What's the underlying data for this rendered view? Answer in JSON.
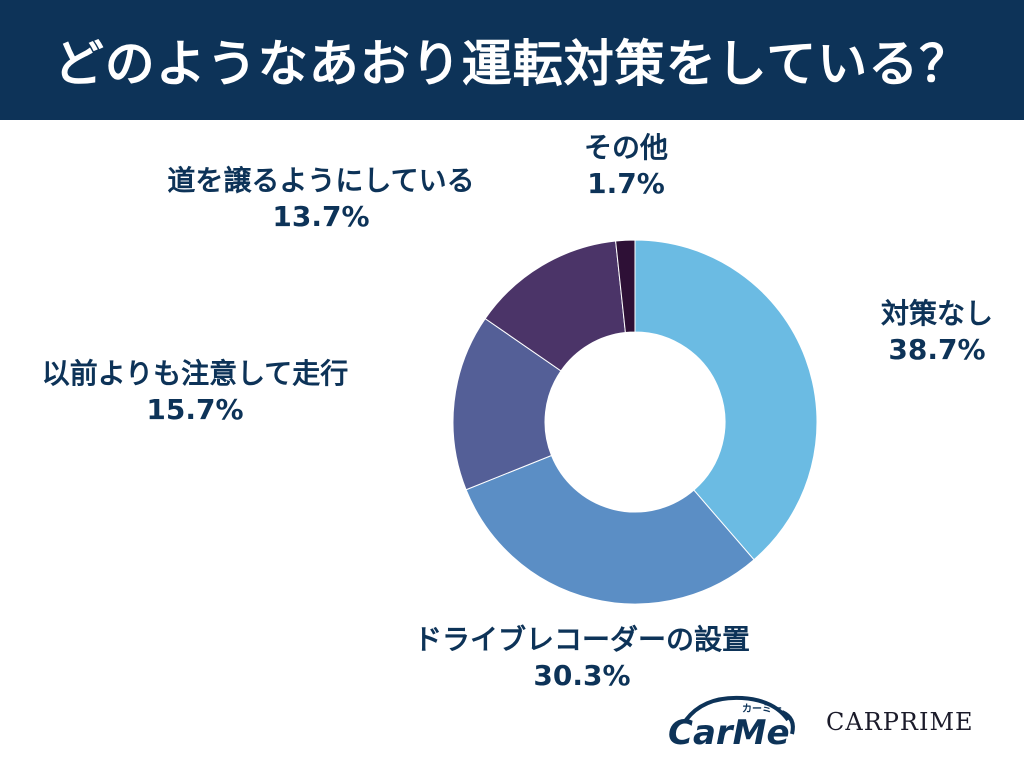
{
  "header": {
    "title": "どのようなあおり運転対策をしている？"
  },
  "chart_data": {
    "type": "pie",
    "donut": true,
    "title": "どのようなあおり運転対策をしている？",
    "slices": [
      {
        "label": "対策なし",
        "value": 38.7,
        "value_label": "38.7%",
        "color": "#6bbbe3"
      },
      {
        "label": "ドライブレコーダーの設置",
        "value": 30.3,
        "value_label": "30.3%",
        "color": "#5b8ec5"
      },
      {
        "label": "以前よりも注意して走行",
        "value": 15.7,
        "value_label": "15.7%",
        "color": "#545f97"
      },
      {
        "label": "道を譲るようにしている",
        "value": 13.7,
        "value_label": "13.7%",
        "color": "#4b3468"
      },
      {
        "label": "その他",
        "value": 1.7,
        "value_label": "1.7%",
        "color": "#2e1036"
      }
    ]
  },
  "logos": {
    "carme_text": "CarMe",
    "carme_kana": "カーミー",
    "carprime_text": "CARPRIME"
  }
}
